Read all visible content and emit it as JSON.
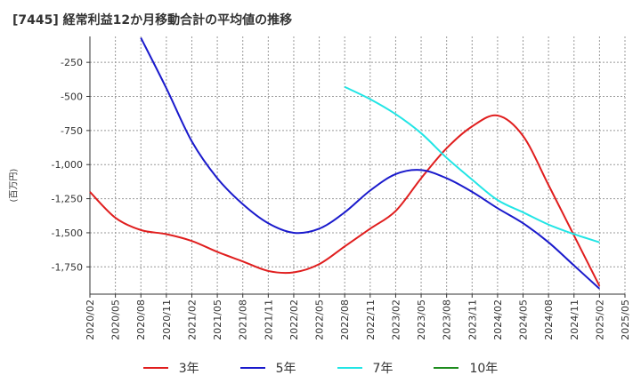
{
  "title": "[7445]  経常利益12か月移動合計の平均値の推移",
  "chart_data": {
    "type": "line",
    "title": "[7445]  経常利益12か月移動合計の平均値の推移",
    "ylabel": "(百万円)",
    "xlabel": "",
    "ylim": [
      -1950,
      -60
    ],
    "yticks": [
      -250,
      -500,
      -750,
      -1000,
      -1250,
      -1500,
      -1750
    ],
    "ytick_labels": [
      "-250",
      "-500",
      "-750",
      "-1,000",
      "-1,250",
      "-1,500",
      "-1,750"
    ],
    "x_ticks": [
      "2020/02",
      "2020/05",
      "2020/08",
      "2020/11",
      "2021/02",
      "2021/05",
      "2021/08",
      "2021/11",
      "2022/02",
      "2022/05",
      "2022/08",
      "2022/11",
      "2023/02",
      "2023/05",
      "2023/08",
      "2023/11",
      "2024/02",
      "2024/05",
      "2024/08",
      "2024/11",
      "2025/02",
      "2025/05"
    ],
    "grid": true,
    "legend_position": "bottom",
    "series": [
      {
        "name": "3年",
        "color": "#e01e1e",
        "points": [
          [
            "2020/02",
            -1200
          ],
          [
            "2020/05",
            -1390
          ],
          [
            "2020/08",
            -1480
          ],
          [
            "2020/11",
            -1510
          ],
          [
            "2021/02",
            -1560
          ],
          [
            "2021/05",
            -1640
          ],
          [
            "2021/08",
            -1710
          ],
          [
            "2021/11",
            -1780
          ],
          [
            "2022/02",
            -1790
          ],
          [
            "2022/05",
            -1730
          ],
          [
            "2022/08",
            -1600
          ],
          [
            "2022/11",
            -1470
          ],
          [
            "2023/02",
            -1340
          ],
          [
            "2023/05",
            -1100
          ],
          [
            "2023/08",
            -880
          ],
          [
            "2023/11",
            -720
          ],
          [
            "2024/02",
            -640
          ],
          [
            "2024/05",
            -790
          ],
          [
            "2024/08",
            -1150
          ],
          [
            "2024/11",
            -1520
          ],
          [
            "2025/02",
            -1890
          ]
        ]
      },
      {
        "name": "5年",
        "color": "#1a1acc",
        "points": [
          [
            "2020/08",
            -70
          ],
          [
            "2020/11",
            -440
          ],
          [
            "2021/02",
            -830
          ],
          [
            "2021/05",
            -1100
          ],
          [
            "2021/08",
            -1290
          ],
          [
            "2021/11",
            -1430
          ],
          [
            "2022/02",
            -1500
          ],
          [
            "2022/05",
            -1470
          ],
          [
            "2022/08",
            -1350
          ],
          [
            "2022/11",
            -1190
          ],
          [
            "2023/02",
            -1070
          ],
          [
            "2023/05",
            -1040
          ],
          [
            "2023/08",
            -1100
          ],
          [
            "2023/11",
            -1200
          ],
          [
            "2024/02",
            -1320
          ],
          [
            "2024/05",
            -1430
          ],
          [
            "2024/08",
            -1570
          ],
          [
            "2024/11",
            -1740
          ],
          [
            "2025/02",
            -1910
          ]
        ]
      },
      {
        "name": "7年",
        "color": "#22e5e5",
        "points": [
          [
            "2022/08",
            -430
          ],
          [
            "2022/11",
            -520
          ],
          [
            "2023/02",
            -630
          ],
          [
            "2023/05",
            -770
          ],
          [
            "2023/08",
            -950
          ],
          [
            "2023/11",
            -1110
          ],
          [
            "2024/02",
            -1260
          ],
          [
            "2024/05",
            -1350
          ],
          [
            "2024/08",
            -1440
          ],
          [
            "2024/11",
            -1510
          ],
          [
            "2025/02",
            -1570
          ]
        ]
      },
      {
        "name": "10年",
        "color": "#1e8c1e",
        "points": []
      }
    ]
  }
}
